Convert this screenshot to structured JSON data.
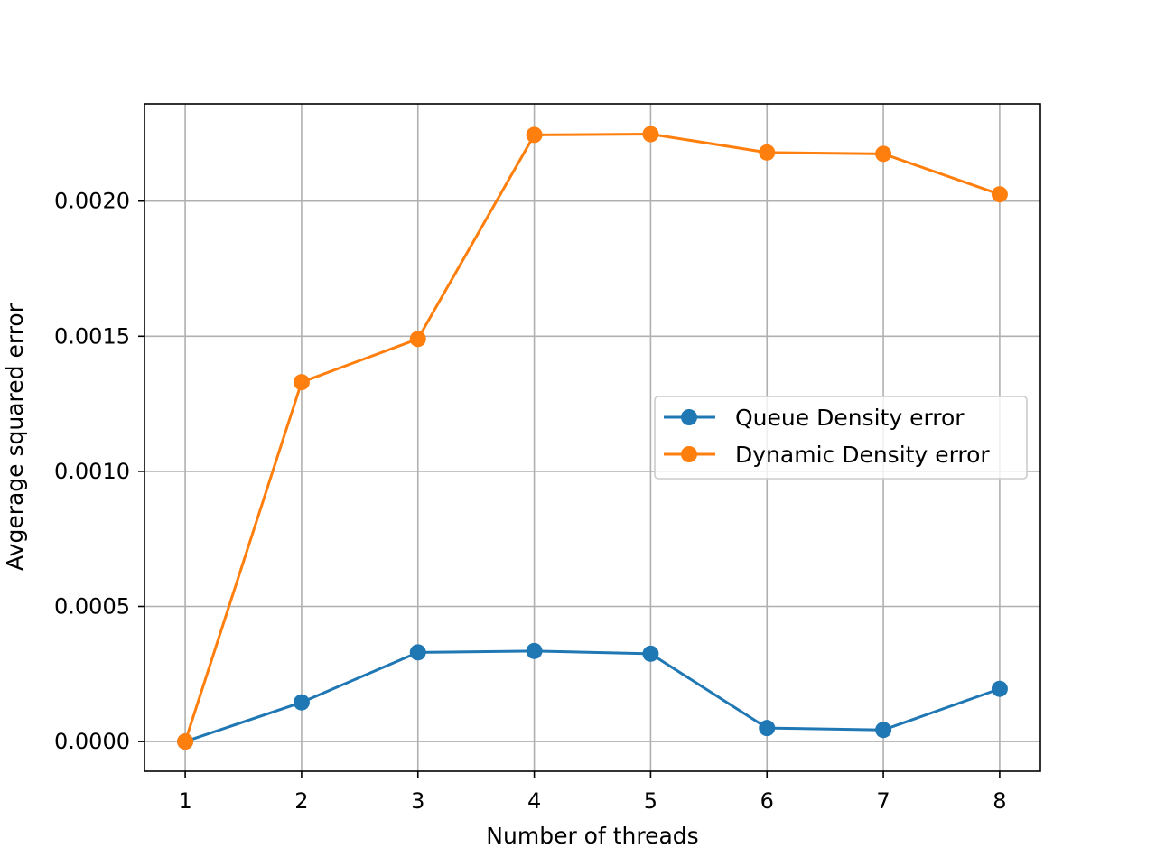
{
  "chart_data": {
    "type": "line",
    "title": "",
    "xlabel": "Number of threads",
    "ylabel": "Avgerage squared error",
    "x": [
      1,
      2,
      3,
      4,
      5,
      6,
      7,
      8
    ],
    "xlim": [
      0.65,
      8.35
    ],
    "ylim": [
      -0.00011,
      0.00236
    ],
    "xticks": [
      1,
      2,
      3,
      4,
      5,
      6,
      7,
      8
    ],
    "xtick_labels": [
      "1",
      "2",
      "3",
      "4",
      "5",
      "6",
      "7",
      "8"
    ],
    "yticks": [
      0,
      0.0005,
      0.001,
      0.0015,
      0.002
    ],
    "ytick_labels": [
      "0.0000",
      "0.0005",
      "0.0010",
      "0.0015",
      "0.0020"
    ],
    "grid": true,
    "legend_position": "center-right",
    "series": [
      {
        "name": "Queue Density error",
        "color": "#1f77b4",
        "marker": "circle",
        "values": [
          0.0,
          0.000145,
          0.00033,
          0.000335,
          0.000325,
          5e-05,
          4.3e-05,
          0.000195
        ]
      },
      {
        "name": "Dynamic Density error",
        "color": "#ff7f0e",
        "marker": "circle",
        "values": [
          0.0,
          0.00133,
          0.00149,
          0.002245,
          0.002248,
          0.00218,
          0.002175,
          0.002025
        ]
      }
    ]
  }
}
